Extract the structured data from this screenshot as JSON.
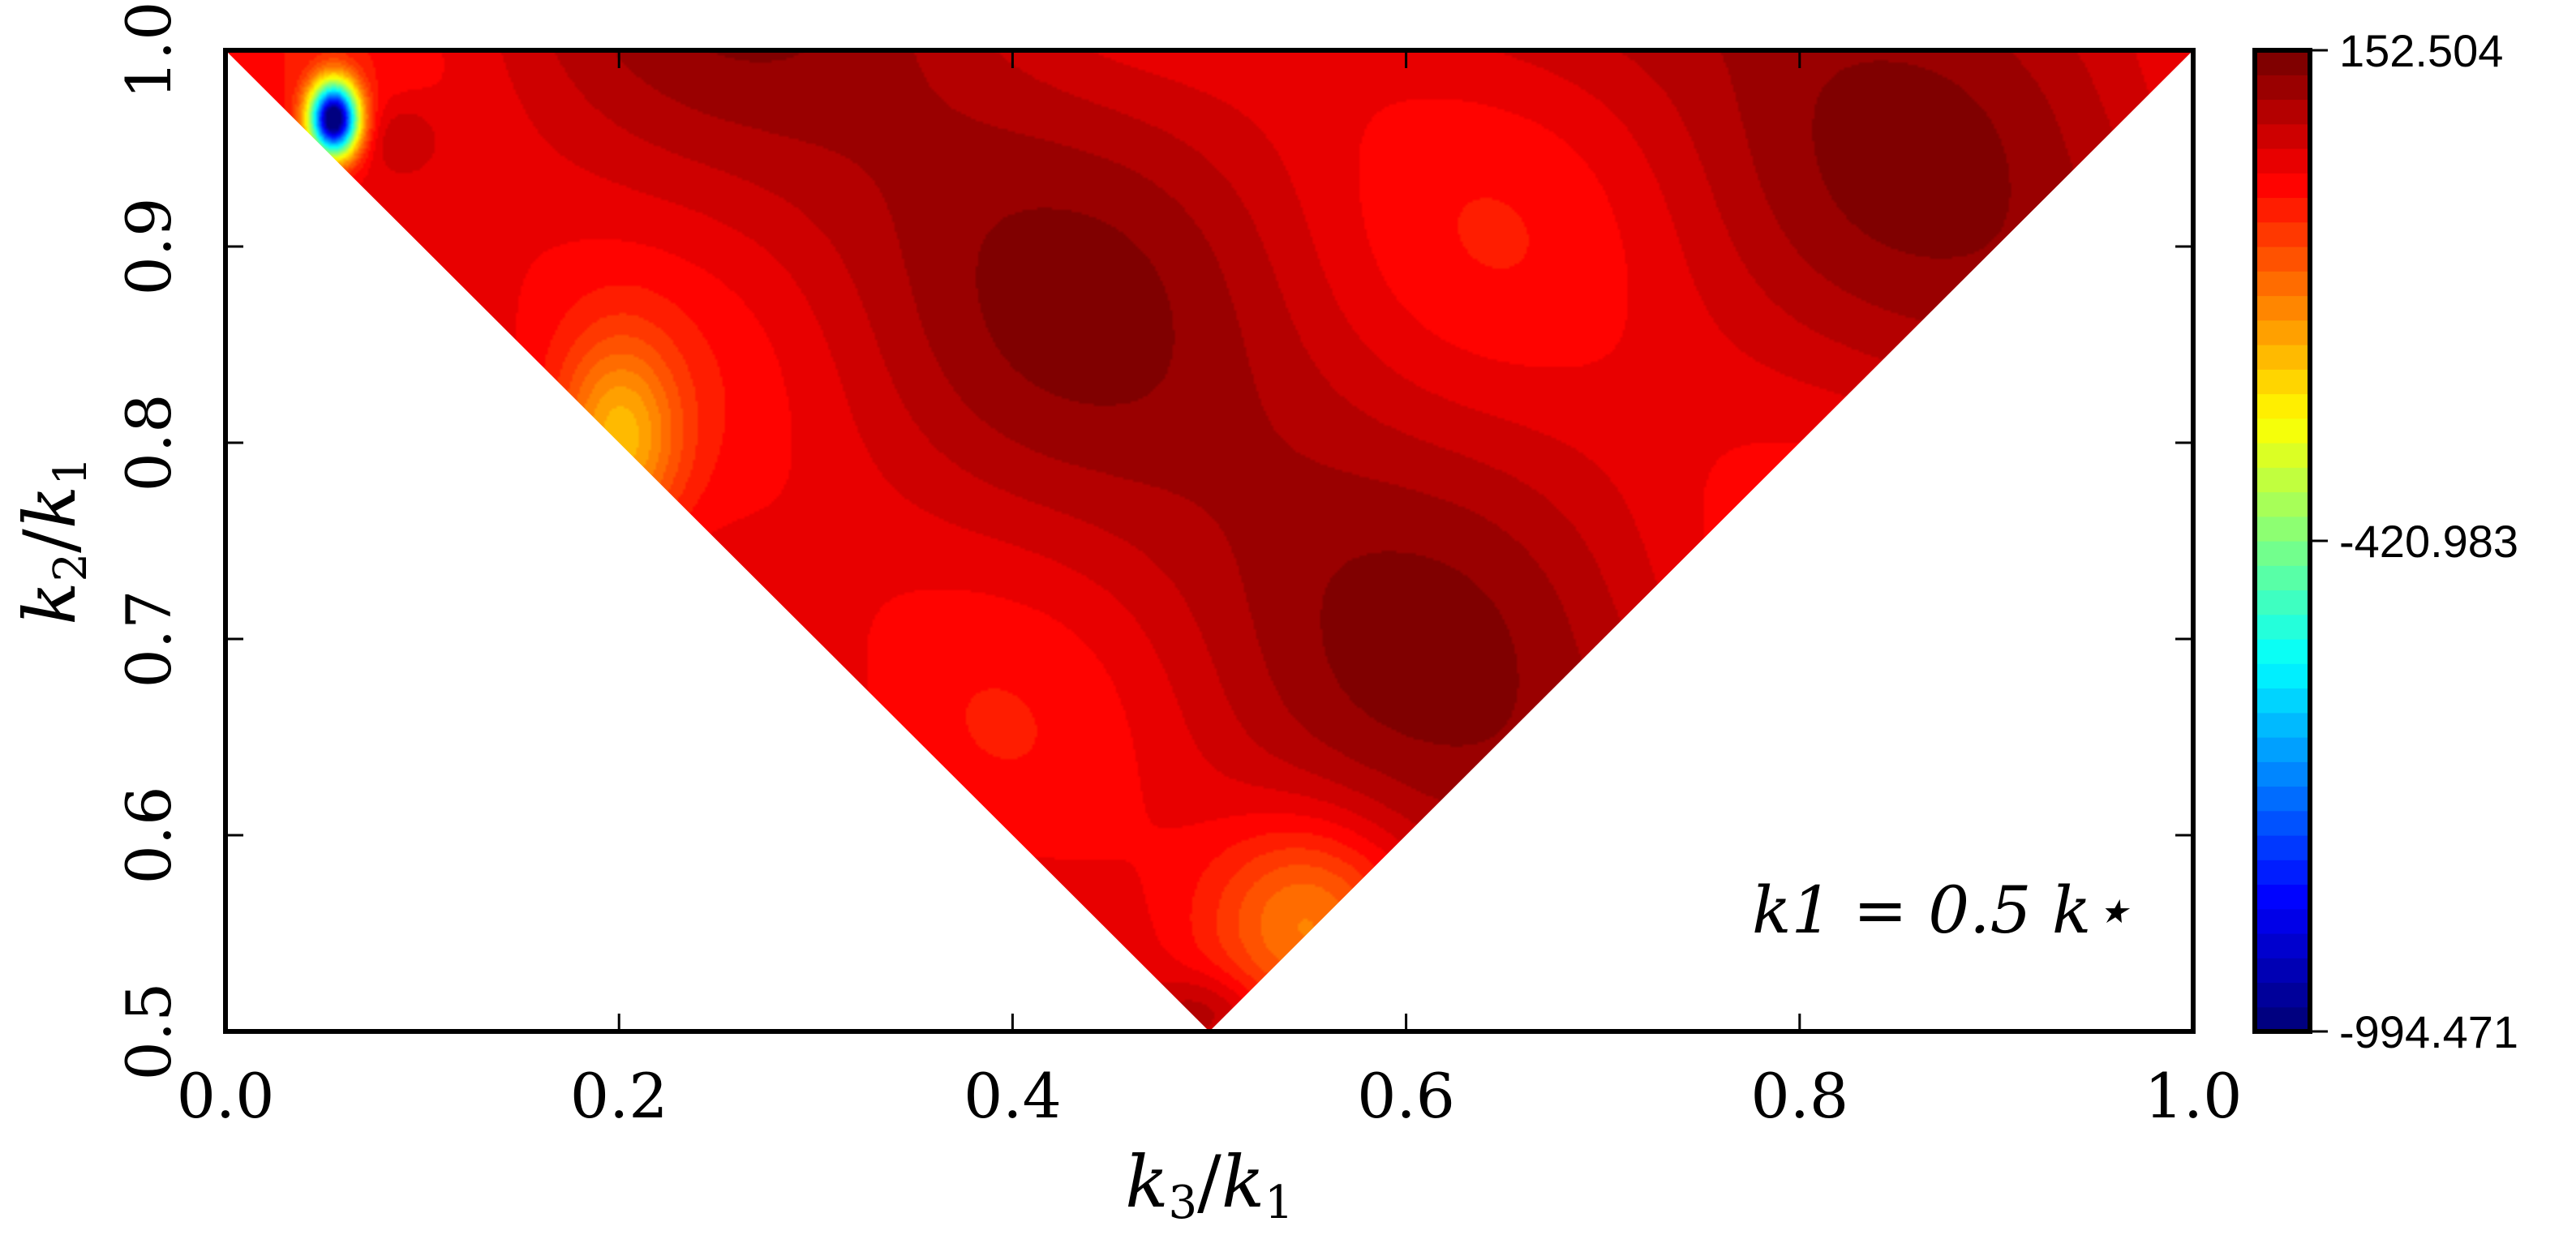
{
  "chart_data": {
    "type": "heatmap",
    "title": "",
    "xlabel": "k3/k1",
    "ylabel": "k2/k1",
    "xlim": [
      0.0,
      1.0
    ],
    "ylim": [
      0.5,
      1.0
    ],
    "x_ticks": [
      {
        "value": 0.0,
        "label": "0.0"
      },
      {
        "value": 0.2,
        "label": "0.2"
      },
      {
        "value": 0.4,
        "label": "0.4"
      },
      {
        "value": 0.6,
        "label": "0.6"
      },
      {
        "value": 0.8,
        "label": "0.8"
      },
      {
        "value": 1.0,
        "label": "1.0"
      }
    ],
    "y_ticks": [
      {
        "value": 0.5,
        "label": "0.5"
      },
      {
        "value": 0.6,
        "label": "0.6"
      },
      {
        "value": 0.7,
        "label": "0.7"
      },
      {
        "value": 0.8,
        "label": "0.8"
      },
      {
        "value": 0.9,
        "label": "0.9"
      },
      {
        "value": 1.0,
        "label": "1.0"
      }
    ],
    "colorbar": {
      "min": -994.471,
      "max": 152.504,
      "ticks": [
        {
          "value": 152.504,
          "label": "152.504"
        },
        {
          "value": -420.983,
          "label": "-420.983"
        },
        {
          "value": -994.471,
          "label": "-994.471"
        }
      ],
      "colormap": "jet",
      "levels": 40
    },
    "annotation": "k1 = 0.5 k⋆",
    "domain": "triangle with vertices (0,1), (1,1), (0.5,0.5): k2 >= 1 - k3 and k2 >= k3",
    "grid": false,
    "features": [
      {
        "kind": "minimum",
        "k3": 0.055,
        "k2": 0.965,
        "value": -994.471
      },
      {
        "kind": "maximum-ridge",
        "k3": 0.38,
        "k2": 0.88,
        "value": 152.504
      },
      {
        "kind": "maximum-ridge",
        "k3": 0.57,
        "k2": 0.72,
        "value": 152.504
      },
      {
        "kind": "local-high",
        "k3": 0.5,
        "k2": 0.51,
        "value": 145.0
      },
      {
        "kind": "local-low",
        "k3": 0.55,
        "k2": 0.56,
        "value": -200.0
      },
      {
        "kind": "local-low",
        "k3": 0.2,
        "k2": 0.8,
        "value": -260.0
      }
    ]
  }
}
